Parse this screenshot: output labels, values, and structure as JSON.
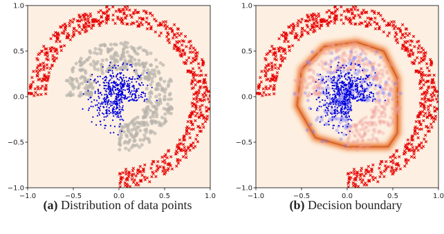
{
  "panels": [
    {
      "tag": "(a)",
      "caption": "Distribution of data points"
    },
    {
      "tag": "(b)",
      "caption": "Decision boundary"
    }
  ],
  "colors": {
    "background": "#fdf0e2",
    "outer_class": "#e60000",
    "inner_class": "#0000dd",
    "unlabeled": "#b8b3ad",
    "boundary": "#e8641a"
  },
  "chart_data": [
    {
      "type": "scatter",
      "title": "",
      "xlabel": "",
      "ylabel": "",
      "xlim": [
        -1.0,
        1.0
      ],
      "ylim": [
        -1.0,
        1.0
      ],
      "xticks": [
        "−1.0",
        "−0.5",
        "0.0",
        "0.5",
        "1.0"
      ],
      "yticks": [
        "1.0",
        "0.5",
        "0.0",
        "−0.5",
        "−1.0"
      ],
      "grid": false,
      "series": [
        {
          "marker": "x",
          "color": "#e60000",
          "region": "outer ring",
          "theta_deg": [
            -90,
            180
          ],
          "r": [
            0.8,
            1.0
          ],
          "count": 650
        },
        {
          "marker": "circle",
          "color": "#b8b3ad",
          "region": "middle ring",
          "theta_deg": [
            -90,
            180
          ],
          "r": [
            0.3,
            0.6
          ],
          "count": 450
        },
        {
          "marker": "dot",
          "color": "#0000dd",
          "region": "inner blob",
          "center": [
            0.0,
            0.0
          ],
          "radius": 0.3,
          "count": 500
        }
      ]
    },
    {
      "type": "scatter",
      "title": "",
      "xlabel": "",
      "ylabel": "",
      "xlim": [
        -1.0,
        1.0
      ],
      "ylim": [
        -1.0,
        1.0
      ],
      "xticks": [
        "−1.0",
        "−0.5",
        "0.0",
        "0.5",
        "1.0"
      ],
      "yticks": [
        "1.0",
        "0.5",
        "0.0",
        "−0.5",
        "−1.0"
      ],
      "grid": false,
      "background": "heatmap",
      "series": [
        {
          "marker": "x",
          "color": "#e60000",
          "region": "outer ring",
          "theta_deg": [
            -90,
            180
          ],
          "r": [
            0.8,
            1.0
          ],
          "count": 650
        },
        {
          "marker": "circle",
          "color": "#f2a09a",
          "alpha": 0.35,
          "region": "middle ring",
          "theta_deg": [
            -90,
            180
          ],
          "r": [
            0.3,
            0.6
          ],
          "count": 450
        },
        {
          "marker": "dot",
          "color": "#0000dd",
          "region": "inner blob",
          "center": [
            0.0,
            0.0
          ],
          "radius": 0.3,
          "count": 500
        },
        {
          "marker": "circle",
          "color": "#7070ff",
          "alpha": 0.35,
          "region": "inner scatter",
          "center": [
            0.0,
            0.0
          ],
          "radius": 0.45,
          "count": 250
        }
      ],
      "decision_boundary": {
        "shape": "rounded loop",
        "path": [
          [
            0.0,
            -0.55
          ],
          [
            -0.35,
            -0.45
          ],
          [
            -0.55,
            -0.1
          ],
          [
            -0.5,
            0.3
          ],
          [
            -0.25,
            0.55
          ],
          [
            0.1,
            0.6
          ],
          [
            0.4,
            0.5
          ],
          [
            0.55,
            0.2
          ],
          [
            0.55,
            -0.4
          ],
          [
            0.45,
            -0.55
          ],
          [
            0.0,
            -0.55
          ]
        ]
      }
    }
  ]
}
